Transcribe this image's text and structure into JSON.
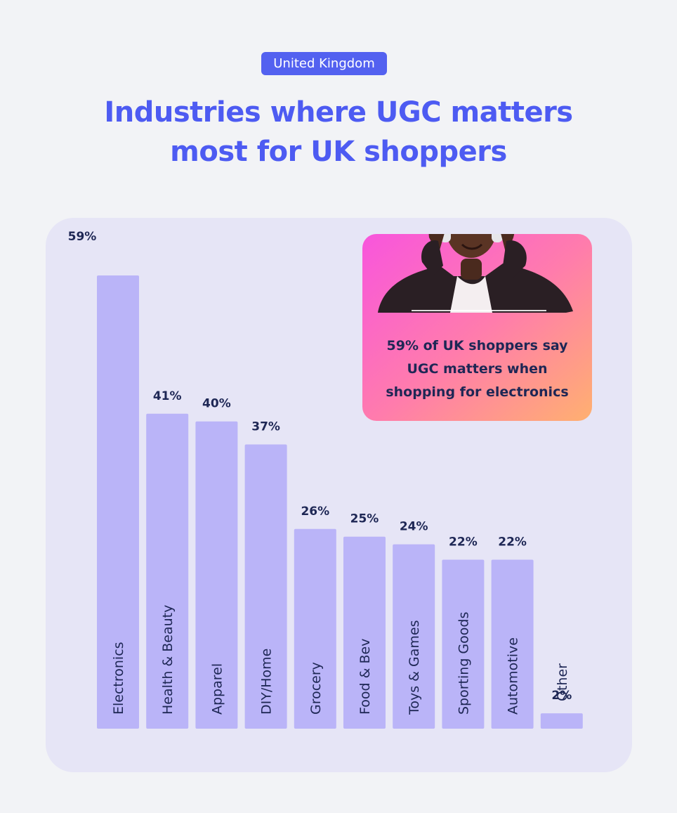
{
  "header": {
    "badge": "United Kingdom",
    "title_line1": "Industries where UGC matters",
    "title_line2": "most for UK shoppers"
  },
  "callout": {
    "line1": "59% of UK shoppers say",
    "line2": "UGC matters when",
    "line3": "shopping for electronics",
    "image": "man-with-headphones-photo"
  },
  "colors": {
    "accent": "#4d5bf2",
    "bar": "#bab4f8",
    "label": "#1e2755",
    "panel": "#e6e5f6"
  },
  "chart_data": {
    "type": "bar",
    "title": "Industries where UGC matters most for UK shoppers",
    "categories": [
      "Electronics",
      "Health & Beauty",
      "Apparel",
      "DIY/Home",
      "Grocery",
      "Food & Bev",
      "Toys & Games",
      "Sporting Goods",
      "Automotive",
      "Other"
    ],
    "values": [
      59,
      41,
      40,
      37,
      26,
      25,
      24,
      22,
      22,
      2
    ],
    "value_labels": [
      "59%",
      "41%",
      "40%",
      "37%",
      "26%",
      "25%",
      "24%",
      "22%",
      "22%",
      "2%"
    ],
    "unit": "%",
    "ylim": [
      0,
      59
    ],
    "xlabel": "",
    "ylabel": ""
  }
}
